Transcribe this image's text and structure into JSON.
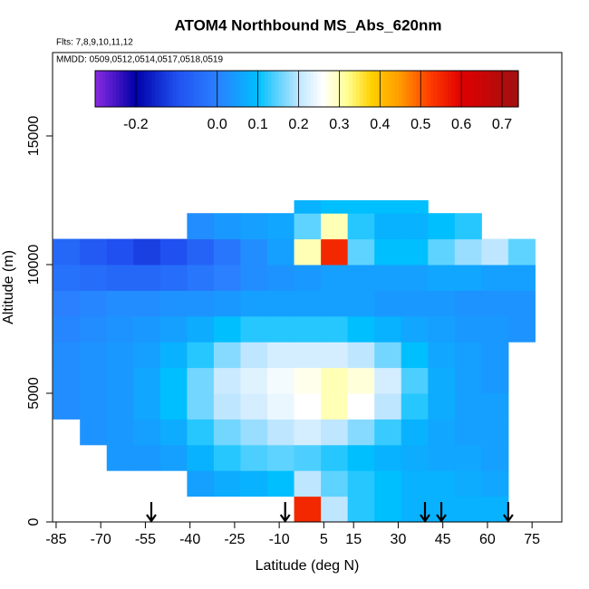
{
  "chart_data": {
    "type": "curtain",
    "title": "ATOM4 Northbound MS_Abs_620nm",
    "subtitle": [
      "Flts: 7,8,9,10,11,12",
      "MMDD: 0509,0512,0514,0517,0518,0519"
    ],
    "x_label": "Latitude (deg N)",
    "y_label": "Altitude (m)",
    "xlim": [
      -86.2,
      85
    ],
    "ylim": [
      0,
      18240
    ],
    "xticks": [
      -85,
      -70,
      -55,
      -40,
      -25,
      -10,
      5,
      15,
      30,
      45,
      60,
      75
    ],
    "yticks": [
      0,
      5000,
      10000,
      15000
    ],
    "arrows": [
      -53,
      -8,
      39,
      44.5,
      67
    ],
    "colorbar": {
      "lim": [
        -0.3,
        0.74
      ],
      "ticks": [
        -0.2,
        {
          "value": 0,
          "label": "0.0"
        },
        0.1,
        0.2,
        0.3,
        0.4,
        0.5,
        0.6,
        0.7
      ],
      "colors": [
        [
          -0.3,
          "#8a2be2"
        ],
        [
          -0.2,
          "#0000a8"
        ],
        [
          -0.1,
          "#2050f0"
        ],
        [
          0,
          "#2a80ff"
        ],
        [
          0.1,
          "#00bfff"
        ],
        [
          0.2,
          "#bfe6ff"
        ],
        [
          0.26,
          "#ffffff"
        ],
        [
          0.32,
          "#ffff90"
        ],
        [
          0.38,
          "#ffd000"
        ],
        [
          0.45,
          "#ff9a00"
        ],
        [
          0.52,
          "#ff4000"
        ],
        [
          0.6,
          "#e00000"
        ],
        [
          0.74,
          "#a01010"
        ]
      ]
    },
    "grid": {
      "lat_edges": [
        -86,
        -77,
        -68,
        -59,
        -50,
        -41,
        -32,
        -23,
        -14,
        -5,
        4,
        13,
        22,
        31,
        40,
        49,
        58,
        67,
        76
      ],
      "alt_edges": [
        0,
        1000,
        2000,
        3000,
        4000,
        5000,
        6000,
        7000,
        8000,
        9000,
        10000,
        11000,
        12000,
        12500
      ],
      "values": [
        [
          null,
          null,
          null,
          null,
          null,
          null,
          null,
          null,
          null,
          0.55,
          0.2,
          0.12,
          0.1,
          0.08,
          0.08,
          0.08,
          0.08,
          null
        ],
        [
          null,
          null,
          null,
          null,
          null,
          0.05,
          0.07,
          0.08,
          0.1,
          0.2,
          0.15,
          0.12,
          0.1,
          0.08,
          0.08,
          0.07,
          0.06,
          null
        ],
        [
          null,
          null,
          0.04,
          0.04,
          0.05,
          0.08,
          0.12,
          0.14,
          0.15,
          0.14,
          0.12,
          0.1,
          0.08,
          0.07,
          0.06,
          0.06,
          0.05,
          null
        ],
        [
          null,
          0.03,
          0.04,
          0.05,
          0.07,
          0.12,
          0.16,
          0.18,
          0.2,
          0.22,
          0.2,
          0.17,
          0.13,
          0.08,
          0.06,
          0.05,
          0.05,
          null
        ],
        [
          0.02,
          0.03,
          0.04,
          0.06,
          0.1,
          0.16,
          0.2,
          0.22,
          0.24,
          0.26,
          0.3,
          0.26,
          0.2,
          0.12,
          0.07,
          0.05,
          0.05,
          null
        ],
        [
          0.02,
          0.03,
          0.04,
          0.06,
          0.1,
          0.16,
          0.21,
          0.23,
          0.25,
          0.27,
          0.3,
          0.28,
          0.22,
          0.14,
          0.07,
          0.05,
          0.04,
          null
        ],
        [
          0.02,
          0.03,
          0.04,
          0.05,
          0.08,
          0.12,
          0.17,
          0.2,
          0.22,
          0.22,
          0.22,
          0.2,
          0.16,
          0.1,
          0.06,
          0.05,
          0.04,
          null
        ],
        [
          0.01,
          0.02,
          0.03,
          0.04,
          0.05,
          0.07,
          0.1,
          0.12,
          0.12,
          0.12,
          0.12,
          0.1,
          0.08,
          0.06,
          0.05,
          0.04,
          0.04,
          0.03
        ],
        [
          0,
          0.01,
          0.02,
          0.02,
          0.03,
          0.03,
          0.04,
          0.05,
          0.05,
          0.05,
          0.05,
          0.05,
          0.04,
          0.04,
          0.04,
          0.03,
          0.03,
          0.03
        ],
        [
          -0.03,
          -0.04,
          -0.05,
          -0.05,
          -0.04,
          -0.02,
          0,
          0.02,
          0.03,
          0.04,
          0.05,
          0.05,
          0.05,
          0.05,
          0.06,
          0.06,
          0.05,
          0.05
        ],
        [
          -0.05,
          -0.08,
          -0.1,
          -0.12,
          -0.1,
          -0.06,
          -0.02,
          0.02,
          0.05,
          0.3,
          0.55,
          0.15,
          0.1,
          0.1,
          0.15,
          0.18,
          0.2,
          0.15
        ],
        [
          null,
          null,
          null,
          null,
          null,
          0.02,
          0.04,
          0.05,
          0.06,
          0.15,
          0.3,
          0.12,
          0.08,
          0.08,
          0.1,
          0.12,
          null,
          null
        ],
        [
          null,
          null,
          null,
          null,
          null,
          null,
          null,
          null,
          null,
          0.08,
          0.1,
          0.1,
          0.1,
          0.1,
          null,
          null,
          null,
          null
        ]
      ]
    }
  }
}
